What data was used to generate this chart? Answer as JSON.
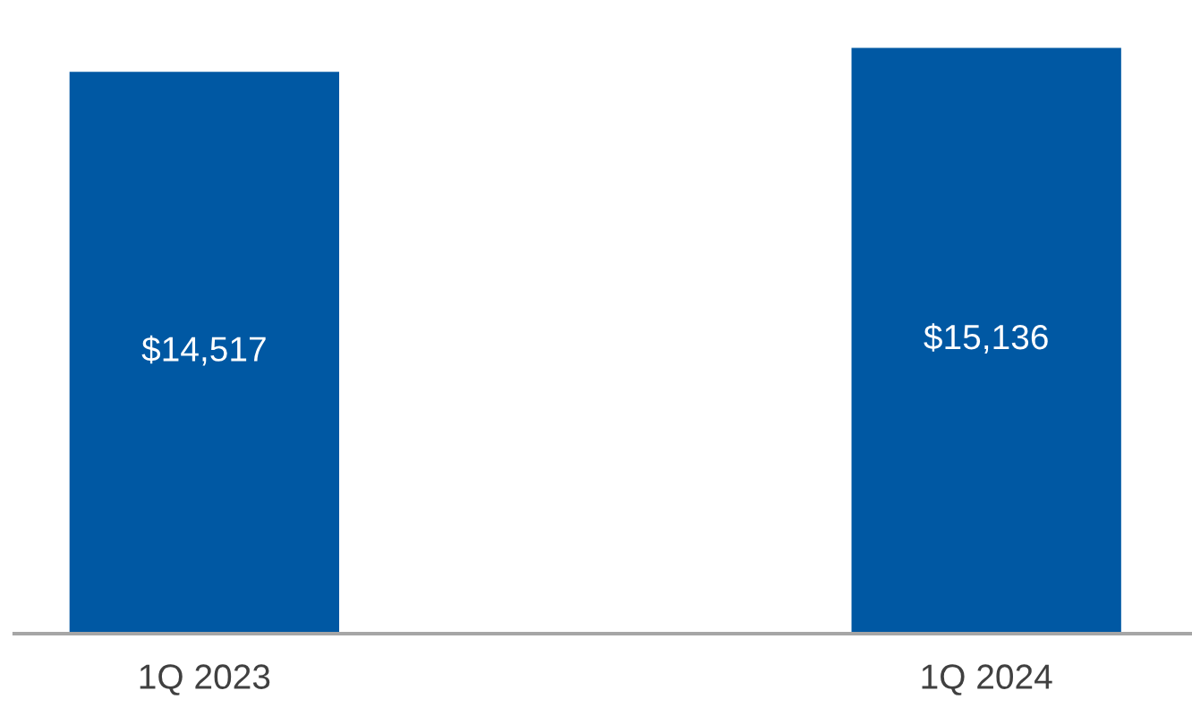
{
  "chart_data": {
    "type": "bar",
    "categories": [
      "1Q 2023",
      "1Q 2024"
    ],
    "values": [
      14517,
      15136
    ],
    "value_labels": [
      "$14,517",
      "$15,136"
    ],
    "color": "#0058a3",
    "tick_labels": "x",
    "grid": false,
    "legend": false
  }
}
